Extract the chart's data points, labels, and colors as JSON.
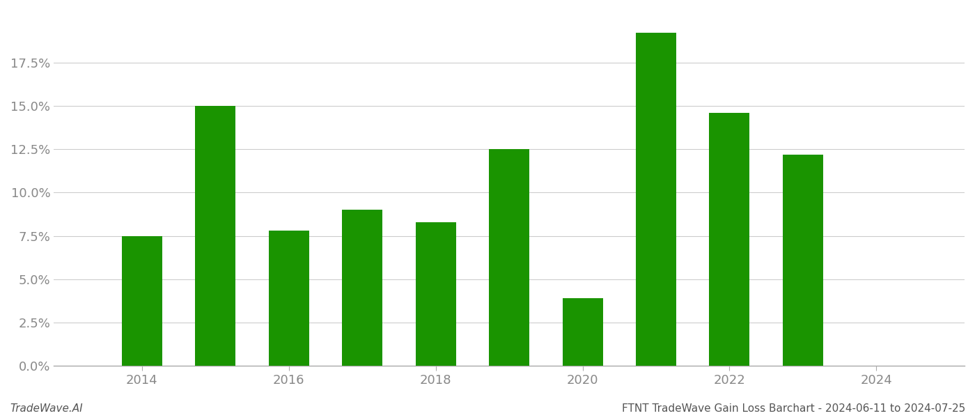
{
  "years": [
    2014,
    2015,
    2016,
    2017,
    2018,
    2019,
    2020,
    2021,
    2022,
    2023
  ],
  "values": [
    0.075,
    0.15,
    0.078,
    0.09,
    0.083,
    0.125,
    0.039,
    0.192,
    0.146,
    0.122
  ],
  "bar_color": "#1a9400",
  "background_color": "#ffffff",
  "grid_color": "#cccccc",
  "tick_label_color": "#888888",
  "footer_left": "TradeWave.AI",
  "footer_right": "FTNT TradeWave Gain Loss Barchart - 2024-06-11 to 2024-07-25",
  "ylim": [
    0,
    0.205
  ],
  "yticks": [
    0.0,
    0.025,
    0.05,
    0.075,
    0.1,
    0.125,
    0.15,
    0.175
  ],
  "xlim": [
    2012.8,
    2025.2
  ],
  "xtick_years": [
    2014,
    2016,
    2018,
    2020,
    2022,
    2024
  ],
  "bar_width": 0.55,
  "tick_fontsize": 13,
  "footer_fontsize": 11
}
